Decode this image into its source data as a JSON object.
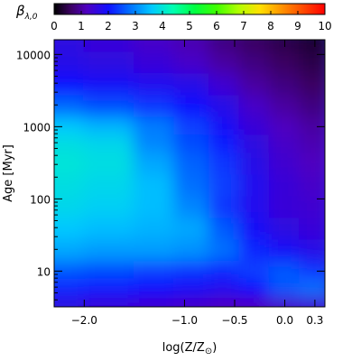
{
  "chart_data": {
    "type": "heatmap",
    "title": "",
    "colorbar": {
      "label": "β",
      "label_subscript": "λ,0",
      "range": [
        0,
        10
      ],
      "ticks": [
        "0",
        "1",
        "2",
        "3",
        "4",
        "5",
        "6",
        "7",
        "8",
        "9",
        "10"
      ]
    },
    "xlabel": "log(Z/Z",
    "xlabel_symbol": "⊙",
    "xlabel_suffix": ")",
    "ylabel": "Age [Myr]",
    "x_range": [
      -2.3,
      0.4
    ],
    "y_range_myr": [
      3.2,
      16000
    ],
    "y_scale": "log",
    "x_ticks": [
      {
        "value": -2.0,
        "label": "−2.0"
      },
      {
        "value": -1.0,
        "label": "−1.0"
      },
      {
        "value": -0.5,
        "label": "−0.5"
      },
      {
        "value": 0.0,
        "label": "0.0"
      },
      {
        "value": 0.3,
        "label": "0.3"
      }
    ],
    "y_ticks": [
      {
        "value": 10,
        "label": "10"
      },
      {
        "value": 100,
        "label": "100"
      },
      {
        "value": 1000,
        "label": "1000"
      },
      {
        "value": 10000,
        "label": "10000"
      }
    ],
    "x_grid": [
      -2.3,
      -1.7,
      -1.3,
      -0.9,
      -0.6,
      -0.3,
      0.0,
      0.3
    ],
    "y_grid_log": [
      0.5,
      0.8,
      1.0,
      1.3,
      1.6,
      1.9,
      2.2,
      2.5,
      2.8,
      3.0,
      3.3,
      3.6,
      3.9,
      4.2
    ],
    "values": [
      [
        1.6,
        1.5,
        1.4,
        1.3,
        1.2,
        1.2,
        1.3,
        1.4
      ],
      [
        2.2,
        2.1,
        2.0,
        1.9,
        1.8,
        2.0,
        2.6,
        2.8
      ],
      [
        2.6,
        2.5,
        2.4,
        2.3,
        2.2,
        2.4,
        2.6,
        2.3
      ],
      [
        3.3,
        3.2,
        3.2,
        3.1,
        2.8,
        2.2,
        1.9,
        1.7
      ],
      [
        3.6,
        3.5,
        3.4,
        3.3,
        2.6,
        1.9,
        1.6,
        1.5
      ],
      [
        3.8,
        3.7,
        3.5,
        3.0,
        2.3,
        1.8,
        1.5,
        1.4
      ],
      [
        3.9,
        3.8,
        3.5,
        2.8,
        2.4,
        1.8,
        1.5,
        1.3
      ],
      [
        4.0,
        3.9,
        3.3,
        2.7,
        2.3,
        1.7,
        1.4,
        1.2
      ],
      [
        3.9,
        3.8,
        3.0,
        2.5,
        2.1,
        1.6,
        1.3,
        1.1
      ],
      [
        3.6,
        3.4,
        2.9,
        2.4,
        1.9,
        1.5,
        1.2,
        1.0
      ],
      [
        2.7,
        2.5,
        2.3,
        2.0,
        1.7,
        1.3,
        1.0,
        0.8
      ],
      [
        2.0,
        1.9,
        1.8,
        1.7,
        1.4,
        1.0,
        0.8,
        0.6
      ],
      [
        1.7,
        1.6,
        1.5,
        1.3,
        1.0,
        0.8,
        0.6,
        0.45
      ],
      [
        1.6,
        1.5,
        1.3,
        1.1,
        0.8,
        0.6,
        0.45,
        0.3
      ]
    ]
  }
}
